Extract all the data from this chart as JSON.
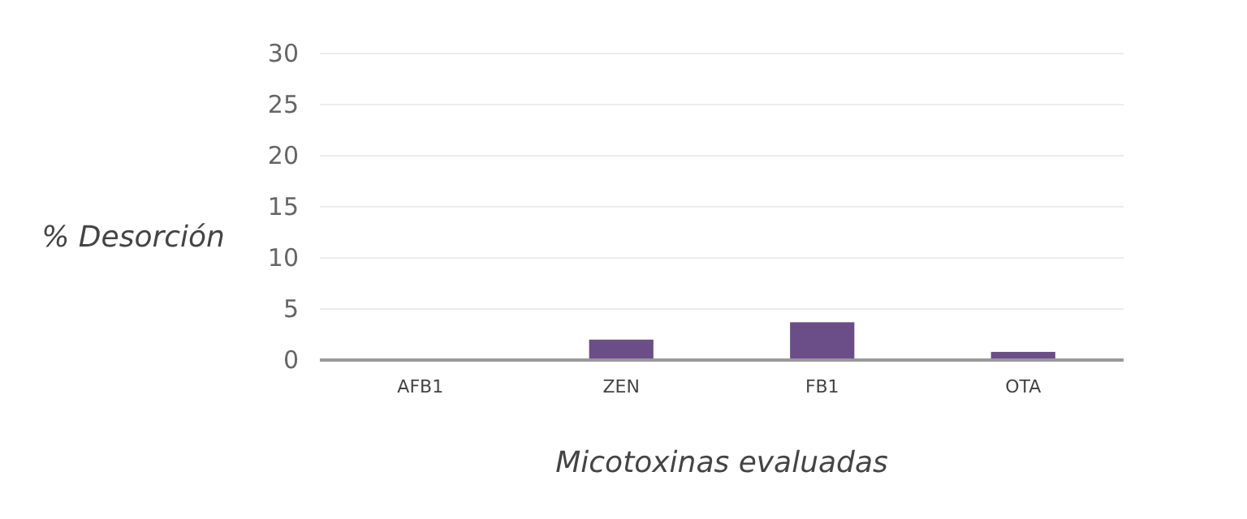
{
  "chart_data": {
    "type": "bar",
    "xlabel": "Micotoxinas evaluadas",
    "ylabel": "% Desorción",
    "categories": [
      "AFB1",
      "ZEN",
      "FB1",
      "OTA"
    ],
    "values": [
      0,
      2.0,
      3.7,
      0.8
    ],
    "color": "#6b4e87",
    "ylim": [
      0,
      30
    ],
    "yticks": [
      0,
      5,
      10,
      15,
      20,
      25,
      30
    ],
    "grid": "y"
  }
}
